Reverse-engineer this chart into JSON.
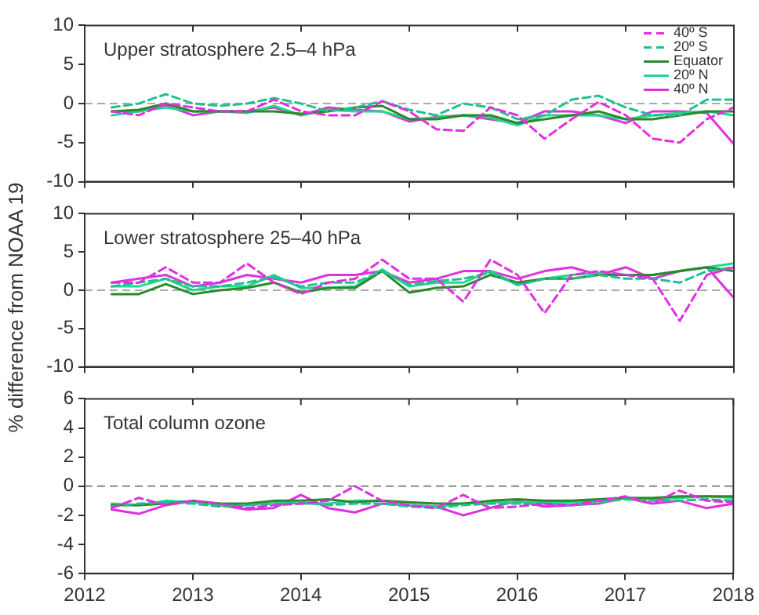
{
  "chart_data": [
    {
      "type": "line",
      "annotations": [
        "Upper stratosphere 2.5–4 hPa"
      ],
      "x": [
        2012.25,
        2012.5,
        2012.75,
        2013,
        2013.25,
        2013.5,
        2013.75,
        2014,
        2014.25,
        2014.5,
        2014.75,
        2015,
        2015.25,
        2015.5,
        2015.75,
        2016,
        2016.25,
        2016.5,
        2016.75,
        2017,
        2017.25,
        2017.5,
        2017.75,
        2018
      ],
      "xlim": [
        2012,
        2018
      ],
      "xticks": [
        2012,
        2013,
        2014,
        2015,
        2016,
        2017,
        2018
      ],
      "ylim": [
        -10,
        10
      ],
      "yticks": [
        -10,
        -5,
        0,
        5,
        10
      ],
      "tick_labels": "y",
      "grid": false,
      "legend": "top right",
      "marker": "none",
      "ref_lines": [
        {
          "axis": "y",
          "value": 0,
          "color": "#aaaaaa",
          "line_style": "dashed"
        }
      ],
      "series": [
        {
          "name": "40º S",
          "color": "#e030e0",
          "line_style": "dashed",
          "values": [
            -1,
            -1.5,
            0,
            -0.5,
            -1,
            -1,
            0.5,
            -1,
            -1.5,
            -1.5,
            0.3,
            -1,
            -3.3,
            -3.5,
            -0.5,
            -1.5,
            -4.5,
            -2,
            0.2,
            -1.5,
            -4.5,
            -5,
            -2,
            -0.5
          ]
        },
        {
          "name": "20º S",
          "color": "#20c090",
          "line_style": "dashed",
          "values": [
            -0.5,
            0,
            1.2,
            0,
            -0.3,
            0,
            0.7,
            0,
            -1,
            -0.5,
            0.3,
            -0.8,
            -1.5,
            0,
            -0.5,
            -2,
            -1.5,
            0.5,
            1,
            -0.5,
            -1.5,
            -1.5,
            0.5,
            0.5
          ]
        },
        {
          "name": "Equator",
          "color": "#2a8a2a",
          "line_style": "solid",
          "values": [
            -1,
            -0.8,
            0,
            -1,
            -1,
            -1,
            -1,
            -1.3,
            -1,
            -0.5,
            -0.3,
            -2,
            -2,
            -1.5,
            -1.5,
            -2.5,
            -2,
            -1.5,
            -1,
            -2,
            -2,
            -1.5,
            -1,
            -1
          ]
        },
        {
          "name": "20º N",
          "color": "#20d890",
          "line_style": "solid",
          "values": [
            -1.5,
            -1,
            -0.5,
            -1,
            -1,
            -1.2,
            -0.3,
            -1.5,
            -0.8,
            -1,
            -1,
            -2,
            -1.8,
            -1.5,
            -1.8,
            -2.8,
            -1.5,
            -1.5,
            -1.5,
            -2,
            -1.5,
            -1.2,
            -1,
            -1.5
          ]
        },
        {
          "name": "40º N",
          "color": "#e030e0",
          "line_style": "solid",
          "values": [
            -1,
            -1,
            -0.2,
            -1.5,
            -1,
            -1,
            -0.5,
            -1.5,
            -0.5,
            -0.8,
            -1,
            -2.3,
            -1.7,
            -1.5,
            -2,
            -2.5,
            -1,
            -1,
            -1.5,
            -2.5,
            -1,
            -1,
            -1.2,
            -5.2
          ]
        }
      ]
    },
    {
      "type": "line",
      "ylabel": "% difference from NOAA 19",
      "annotations": [
        "Lower stratosphere 25–40 hPa"
      ],
      "x": [
        2012.25,
        2012.5,
        2012.75,
        2013,
        2013.25,
        2013.5,
        2013.75,
        2014,
        2014.25,
        2014.5,
        2014.75,
        2015,
        2015.25,
        2015.5,
        2015.75,
        2016,
        2016.25,
        2016.5,
        2016.75,
        2017,
        2017.25,
        2017.5,
        2017.75,
        2018
      ],
      "xlim": [
        2012,
        2018
      ],
      "xticks": [
        2012,
        2013,
        2014,
        2015,
        2016,
        2017,
        2018
      ],
      "ylim": [
        -10,
        10
      ],
      "yticks": [
        -10,
        -5,
        0,
        5,
        10
      ],
      "tick_labels": "y",
      "grid": false,
      "marker": "none",
      "ref_lines": [
        {
          "axis": "y",
          "value": 0,
          "color": "#aaaaaa",
          "line_style": "dashed"
        }
      ],
      "series": [
        {
          "color": "#e030e0",
          "line_style": "dashed",
          "values": [
            1,
            1,
            3,
            1,
            1,
            3.5,
            1,
            -0.5,
            1,
            1.5,
            4,
            1.5,
            1.5,
            -1.5,
            4,
            2,
            -3,
            2,
            2.5,
            2,
            1.5,
            -4,
            2,
            3
          ]
        },
        {
          "color": "#20c090",
          "line_style": "dashed",
          "values": [
            0.5,
            1,
            1.5,
            0.5,
            0.5,
            1,
            1.7,
            0.5,
            1,
            1,
            2.5,
            0.7,
            1.2,
            1.5,
            2.3,
            0.7,
            1.5,
            1.5,
            2,
            1.5,
            1.5,
            1,
            2.5,
            3
          ]
        },
        {
          "color": "#2a8a2a",
          "line_style": "solid",
          "values": [
            -0.5,
            -0.5,
            0.8,
            -0.5,
            0,
            0.3,
            1,
            -0.3,
            0.3,
            0.3,
            2.5,
            -0.3,
            0.3,
            0.5,
            2,
            1,
            1.5,
            1.5,
            2,
            2,
            2,
            2.5,
            3,
            2.5
          ]
        },
        {
          "color": "#20d890",
          "line_style": "solid",
          "values": [
            0.5,
            0.5,
            1.5,
            0,
            0.5,
            0.5,
            2,
            0.3,
            0.3,
            0.5,
            2.7,
            0.5,
            1,
            1,
            2.5,
            0.7,
            1.5,
            2,
            2.3,
            2,
            2,
            2.5,
            3,
            3.5
          ]
        },
        {
          "color": "#e030e0",
          "line_style": "solid",
          "values": [
            1,
            1.5,
            2,
            0.5,
            1,
            2,
            1.5,
            1,
            2,
            2,
            2.5,
            1,
            1.5,
            2.5,
            2.5,
            1.5,
            2.5,
            3,
            2,
            3,
            1.5,
            2.5,
            3,
            -1
          ]
        }
      ]
    },
    {
      "type": "line",
      "annotations": [
        "Total column ozone"
      ],
      "x": [
        2012.25,
        2012.5,
        2012.75,
        2013,
        2013.25,
        2013.5,
        2013.75,
        2014,
        2014.25,
        2014.5,
        2014.75,
        2015,
        2015.25,
        2015.5,
        2015.75,
        2016,
        2016.25,
        2016.5,
        2016.75,
        2017,
        2017.25,
        2017.5,
        2017.75,
        2018
      ],
      "xlim": [
        2012,
        2018
      ],
      "xticks": [
        2012,
        2013,
        2014,
        2015,
        2016,
        2017,
        2018
      ],
      "ylim": [
        -6,
        6
      ],
      "yticks": [
        -6,
        -4,
        -2,
        0,
        2,
        4,
        6
      ],
      "grid": false,
      "marker": "none",
      "ref_lines": [
        {
          "axis": "y",
          "value": 0,
          "color": "#888888",
          "line_style": "dashed"
        }
      ],
      "series": [
        {
          "color": "#e030e0",
          "line_style": "dashed",
          "values": [
            -1.5,
            -0.8,
            -1.3,
            -1,
            -1.2,
            -1.5,
            -1.3,
            -1.2,
            -1,
            0,
            -1,
            -1.3,
            -1.5,
            -0.6,
            -1.5,
            -1.4,
            -1.2,
            -1.3,
            -1,
            -0.7,
            -1.2,
            -0.3,
            -1,
            -1.1
          ]
        },
        {
          "color": "#20c090",
          "line_style": "dashed",
          "values": [
            -1.4,
            -1.2,
            -1.1,
            -1.2,
            -1.4,
            -1.3,
            -1.2,
            -1.1,
            -1.3,
            -1.2,
            -1.2,
            -1.4,
            -1.5,
            -1.3,
            -1.2,
            -1.2,
            -1.2,
            -1.3,
            -1.1,
            -0.9,
            -1,
            -1,
            -0.9,
            -1
          ]
        },
        {
          "color": "#2a8a2a",
          "line_style": "solid",
          "values": [
            -1.3,
            -1.3,
            -1.2,
            -1,
            -1.2,
            -1.2,
            -1,
            -1,
            -0.9,
            -1.1,
            -1,
            -1.1,
            -1.2,
            -1.2,
            -1,
            -0.9,
            -1,
            -1,
            -0.9,
            -0.8,
            -0.8,
            -0.7,
            -0.7,
            -0.7
          ]
        },
        {
          "color": "#20d890",
          "line_style": "solid",
          "values": [
            -1.2,
            -1.3,
            -1,
            -1.1,
            -1.3,
            -1.3,
            -1.1,
            -1.2,
            -1.2,
            -1,
            -1,
            -1.3,
            -1.4,
            -1.2,
            -1.1,
            -1.1,
            -1.1,
            -1.1,
            -1,
            -0.8,
            -0.9,
            -0.8,
            -0.7,
            -0.8
          ]
        },
        {
          "color": "#e030e0",
          "line_style": "solid",
          "values": [
            -1.6,
            -1.9,
            -1.3,
            -1,
            -1.3,
            -1.6,
            -1.5,
            -0.6,
            -1.5,
            -1.8,
            -1.2,
            -1.3,
            -1.4,
            -2,
            -1.5,
            -1,
            -1.4,
            -1.3,
            -1.2,
            -0.8,
            -1.2,
            -1,
            -1.5,
            -1.2
          ]
        }
      ]
    }
  ]
}
